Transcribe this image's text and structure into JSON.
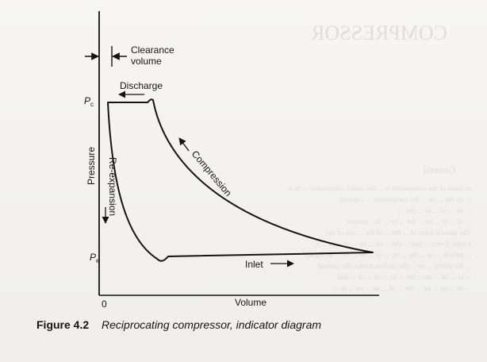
{
  "diagram": {
    "clearance_label_line1": "Clearance",
    "clearance_label_line2": "volume",
    "discharge_label": "Discharge",
    "pc_label": "P",
    "pc_sub": "c",
    "pe_label": "P",
    "pe_sub": "e",
    "y_axis_label": "Pressure",
    "reexpansion_label": "Re-expansion",
    "compression_label": "Compression",
    "inlet_label": "Inlet",
    "origin_label": "0",
    "x_axis_label": "Volume"
  },
  "caption": {
    "number": "Figure 4.2",
    "text": "Reciprocating compressor, indicator diagram"
  },
  "bleed_through": {
    "heading": "COMPRESSOR",
    "subheading": "General",
    "lines": [
      "ns basis of the compressor is ... the radial compressor ... ns is",
      "... ny the ... ne ... the compressor ... capacity",
      "... ne ... of ... ne ... the ...",
      "... of ... re ... ne ... the ... ne ... m... nessier",
      "The general form of ... the ... of the ... nce of the",
      "a type. Every ... tion ... the ... of ... ne ... of ... rs ... s,",
      "... neticle ... ne ... the ... ny ... of ... ne ... ne ... ne figure.",
      "... the piston ... ne ... the suction stroke, the internal",
      "... re ... ne ... ne ... the ... in ... on ... of ... and",
      "... ne ... ne ... ne ... the ... of ... ne ... ne ... in ..."
    ]
  }
}
